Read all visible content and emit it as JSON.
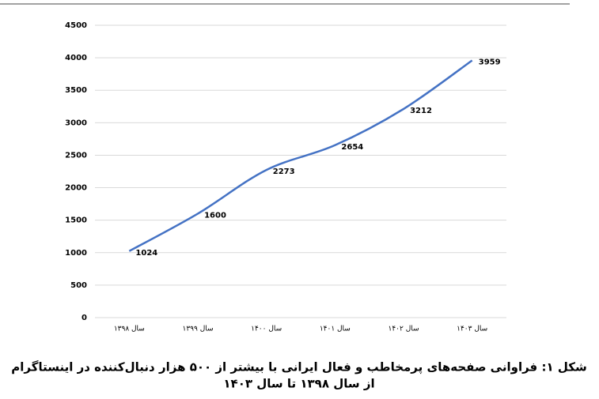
{
  "chart_data": {
    "type": "line",
    "categories": [
      "سال ۱۳۹۸",
      "سال ۱۳۹۹",
      "سال ۱۴۰۰",
      "سال ۱۴۰۱",
      "سال ۱۴۰۲",
      "سال ۱۴۰۳"
    ],
    "series": [
      {
        "color": "#4472c4",
        "values": [
          1024,
          1600,
          2273,
          2654,
          3212,
          3959
        ]
      }
    ],
    "ylim": [
      0,
      4500
    ],
    "yticks": [
      0,
      500,
      1000,
      1500,
      2000,
      2500,
      3000,
      3500,
      4000,
      4500
    ],
    "grid": true,
    "data_labels": true,
    "caption": [
      "شکل ۱: فراوانی صفحه‌های پرمخاطب و فعال ایرانی با بیشتر از ۵۰۰ هزار دنبال‌کننده در اینستاگرام",
      "از سال ۱۳۹۸ تا سال ۱۴۰۳"
    ]
  }
}
